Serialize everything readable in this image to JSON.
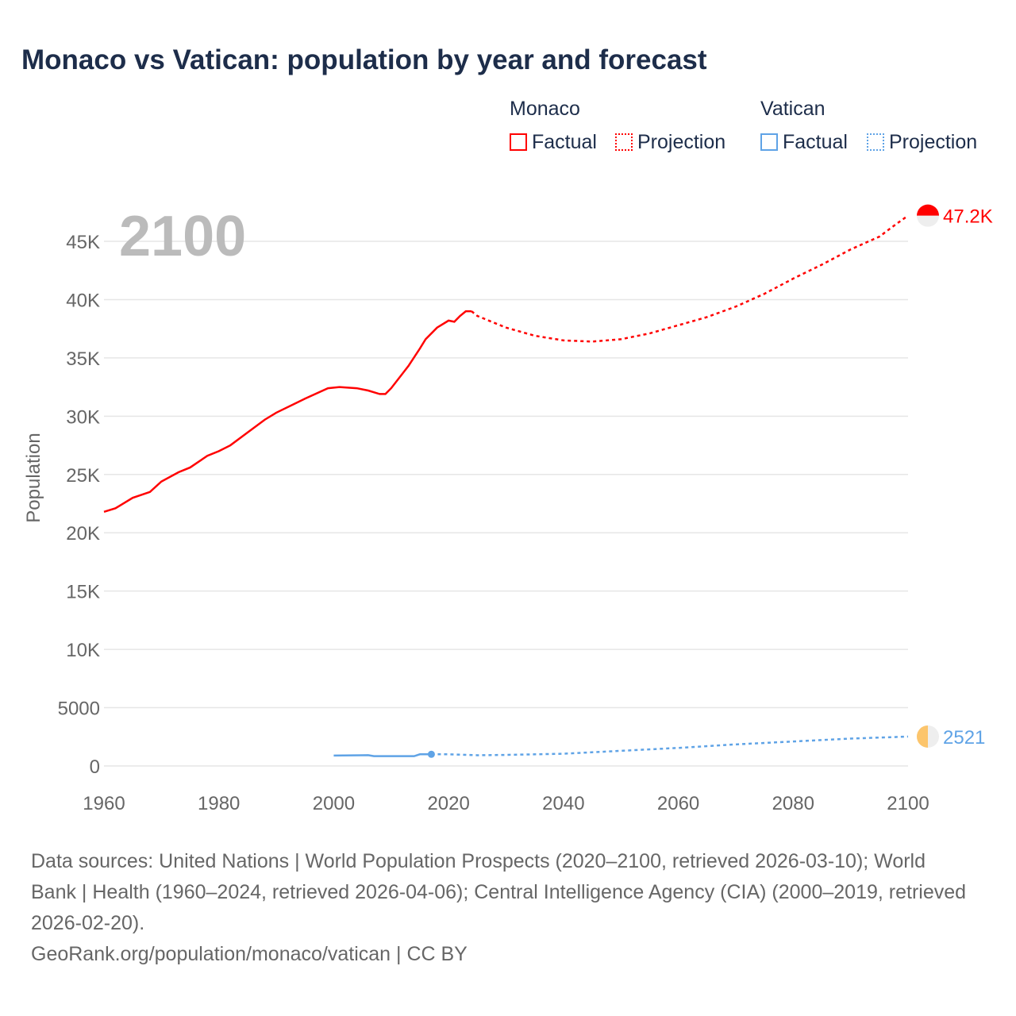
{
  "title": "Monaco vs Vatican: population by year and forecast",
  "legend": {
    "monaco": "Monaco",
    "vatican": "Vatican",
    "factual": "Factual",
    "projection": "Projection"
  },
  "source": "Data sources: United Nations | World Population Prospects (2020–2100, retrieved 2026-03-10); World Bank | Health (1960–2024, retrieved 2026-04-06); Central Intelligence Agency (CIA) (2000–2019, retrieved 2026-02-20).",
  "credit": "GeoRank.org/population/monaco/vatican | CC BY",
  "chart_data": {
    "type": "line",
    "year_label": "2100",
    "ylabel": "Population",
    "xlim": [
      1960,
      2100
    ],
    "ylim": [
      0,
      45000
    ],
    "xticks": [
      "1960",
      "1980",
      "2000",
      "2020",
      "2040",
      "2060",
      "2080",
      "2100"
    ],
    "yticks": [
      "0",
      "5000",
      "10K",
      "15K",
      "20K",
      "25K",
      "30K",
      "35K",
      "40K",
      "45K"
    ],
    "series": [
      {
        "name": "Monaco",
        "color": "#ff0000",
        "end_label": "47.2K",
        "factual": [
          [
            1960,
            21800
          ],
          [
            1962,
            22100
          ],
          [
            1965,
            23000
          ],
          [
            1968,
            23500
          ],
          [
            1970,
            24400
          ],
          [
            1973,
            25200
          ],
          [
            1975,
            25600
          ],
          [
            1978,
            26600
          ],
          [
            1980,
            27000
          ],
          [
            1982,
            27500
          ],
          [
            1985,
            28600
          ],
          [
            1988,
            29700
          ],
          [
            1990,
            30300
          ],
          [
            1995,
            31500
          ],
          [
            1999,
            32400
          ],
          [
            2001,
            32500
          ],
          [
            2004,
            32400
          ],
          [
            2006,
            32200
          ],
          [
            2008,
            31900
          ],
          [
            2009,
            31900
          ],
          [
            2010,
            32400
          ],
          [
            2013,
            34300
          ],
          [
            2015,
            35800
          ],
          [
            2016,
            36600
          ],
          [
            2018,
            37600
          ],
          [
            2020,
            38200
          ],
          [
            2021,
            38100
          ],
          [
            2022,
            38600
          ],
          [
            2023,
            39000
          ],
          [
            2024,
            39000
          ]
        ],
        "projection": [
          [
            2024,
            39000
          ],
          [
            2025,
            38600
          ],
          [
            2030,
            37600
          ],
          [
            2035,
            36900
          ],
          [
            2040,
            36500
          ],
          [
            2045,
            36400
          ],
          [
            2050,
            36600
          ],
          [
            2055,
            37100
          ],
          [
            2060,
            37800
          ],
          [
            2065,
            38500
          ],
          [
            2070,
            39400
          ],
          [
            2075,
            40500
          ],
          [
            2080,
            41800
          ],
          [
            2085,
            43000
          ],
          [
            2090,
            44300
          ],
          [
            2095,
            45400
          ],
          [
            2098,
            46500
          ],
          [
            2100,
            47200
          ]
        ]
      },
      {
        "name": "Vatican",
        "color": "#5fa3e6",
        "end_label": "2521",
        "factual": [
          [
            2000,
            890
          ],
          [
            2005,
            920
          ],
          [
            2006,
            930
          ],
          [
            2007,
            840
          ],
          [
            2013,
            840
          ],
          [
            2014,
            840
          ],
          [
            2015,
            1000
          ],
          [
            2017,
            1000
          ]
        ],
        "projection": [
          [
            2017,
            1000
          ],
          [
            2020,
            1000
          ],
          [
            2025,
            920
          ],
          [
            2030,
            950
          ],
          [
            2040,
            1050
          ],
          [
            2050,
            1300
          ],
          [
            2060,
            1550
          ],
          [
            2070,
            1850
          ],
          [
            2080,
            2100
          ],
          [
            2090,
            2350
          ],
          [
            2100,
            2521
          ]
        ]
      }
    ]
  }
}
